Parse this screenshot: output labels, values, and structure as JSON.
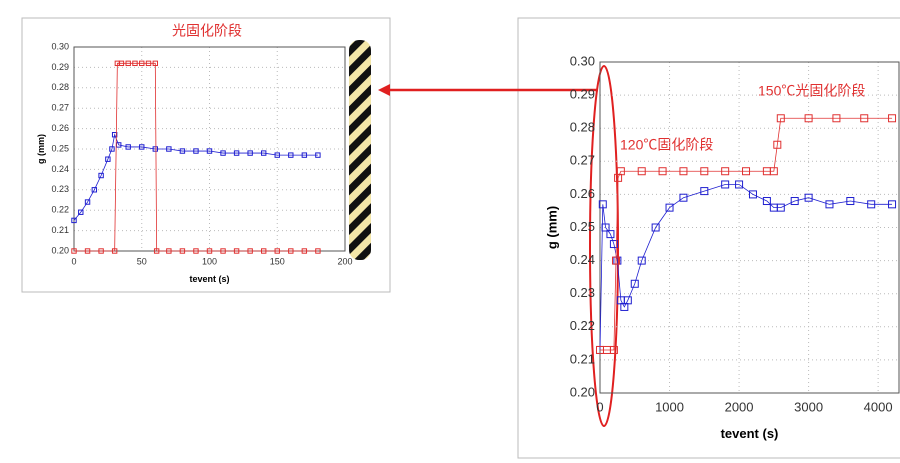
{
  "chart_data": [
    {
      "type": "scatter",
      "title": "光固化阶段",
      "xlabel": "tevent (s)",
      "ylabel": "g (mm)",
      "xlim": [
        0,
        200
      ],
      "ylim": [
        0.2,
        0.3
      ],
      "xticks": [
        0,
        50,
        100,
        150,
        200
      ],
      "yticks": [
        {
          "value": 0.2,
          "label": "0.20"
        },
        0.21,
        0.22,
        0.23,
        0.24,
        0.25,
        0.26,
        0.27,
        0.28,
        0.29,
        {
          "value": 0.3,
          "label": "0.30"
        }
      ],
      "grid": true,
      "series": [
        {
          "color": "#1f1fd0",
          "x": [
            0,
            5,
            10,
            15,
            20,
            25,
            28,
            30,
            33,
            40,
            50,
            60,
            70,
            80,
            90,
            100,
            110,
            120,
            130,
            140,
            150,
            160,
            170,
            180
          ],
          "values": [
            0.215,
            0.219,
            0.224,
            0.23,
            0.237,
            0.245,
            0.25,
            0.257,
            0.252,
            0.251,
            0.251,
            0.25,
            0.25,
            0.249,
            0.249,
            0.249,
            0.248,
            0.248,
            0.248,
            0.248,
            0.247,
            0.247,
            0.247,
            0.247
          ]
        },
        {
          "color": "#e03030",
          "x": [
            0,
            10,
            20,
            30,
            32,
            35,
            40,
            45,
            50,
            55,
            60,
            61,
            70,
            80,
            90,
            100,
            110,
            120,
            130,
            140,
            150,
            160,
            170,
            180
          ],
          "values": [
            0.2,
            0.2,
            0.2,
            0.2,
            0.292,
            0.292,
            0.292,
            0.292,
            0.292,
            0.292,
            0.292,
            0.2,
            0.2,
            0.2,
            0.2,
            0.2,
            0.2,
            0.2,
            0.2,
            0.2,
            0.2,
            0.2,
            0.2,
            0.2
          ]
        }
      ]
    },
    {
      "type": "scatter",
      "xlabel": "tevent (s)",
      "ylabel": "g (mm)",
      "annotations": [
        "120℃固化阶段",
        "150℃光固化阶段"
      ],
      "xlim": [
        0,
        4300
      ],
      "ylim": [
        0.2,
        0.3
      ],
      "xticks": [
        0,
        1000,
        2000,
        3000,
        4000
      ],
      "yticks": [
        {
          "value": 0.2,
          "label": "0.20"
        },
        0.21,
        0.22,
        0.23,
        0.24,
        0.25,
        0.26,
        0.27,
        0.28,
        0.29,
        {
          "value": 0.3,
          "label": "0.30"
        }
      ],
      "grid": true,
      "series": [
        {
          "color": "#1f1fd0",
          "x": [
            0,
            40,
            80,
            150,
            200,
            250,
            300,
            350,
            400,
            500,
            600,
            800,
            1000,
            1200,
            1500,
            1800,
            2000,
            2200,
            2400,
            2500,
            2600,
            2800,
            3000,
            3300,
            3600,
            3900,
            4200
          ],
          "values": [
            0.213,
            0.257,
            0.25,
            0.248,
            0.245,
            0.24,
            0.228,
            0.226,
            0.228,
            0.233,
            0.24,
            0.25,
            0.256,
            0.259,
            0.261,
            0.263,
            0.263,
            0.26,
            0.258,
            0.256,
            0.256,
            0.258,
            0.259,
            0.257,
            0.258,
            0.257,
            0.257
          ]
        },
        {
          "color": "#e03030",
          "x": [
            0,
            100,
            200,
            230,
            260,
            300,
            600,
            900,
            1200,
            1500,
            1800,
            2100,
            2400,
            2500,
            2550,
            2600,
            3000,
            3400,
            3800,
            4200
          ],
          "values": [
            0.213,
            0.213,
            0.213,
            0.24,
            0.265,
            0.267,
            0.267,
            0.267,
            0.267,
            0.267,
            0.267,
            0.267,
            0.267,
            0.267,
            0.275,
            0.283,
            0.283,
            0.283,
            0.283,
            0.283
          ]
        }
      ]
    }
  ]
}
